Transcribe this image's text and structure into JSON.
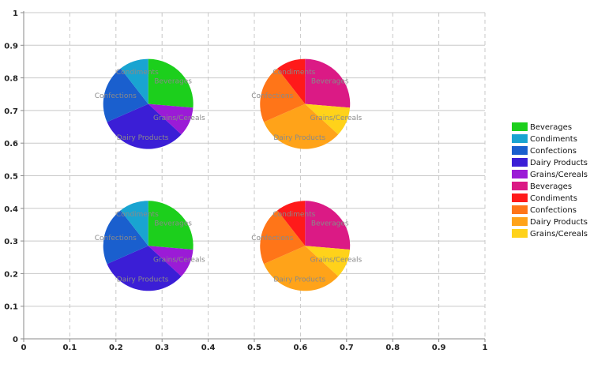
{
  "chart_data": {
    "type": "pie",
    "axes": {
      "xlim": [
        0,
        1
      ],
      "ylim": [
        0,
        1
      ],
      "x_ticks": [
        "0",
        "0.1",
        "0.2",
        "0.3",
        "0.4",
        "0.5",
        "0.6",
        "0.7",
        "0.8",
        "0.9",
        "1"
      ],
      "y_ticks": [
        "0",
        "0.1",
        "0.2",
        "0.3",
        "0.4",
        "0.5",
        "0.6",
        "0.7",
        "0.8",
        "0.9",
        "1"
      ],
      "grid": true
    },
    "legend": {
      "placement": "right",
      "entries": [
        {
          "label": "Beverages",
          "color": "#1ccf1c"
        },
        {
          "label": "Condiments",
          "color": "#19a4d1"
        },
        {
          "label": "Confections",
          "color": "#1a5fce"
        },
        {
          "label": "Dairy Products",
          "color": "#3b1ed6"
        },
        {
          "label": "Grains/Cereals",
          "color": "#9b1bd6"
        },
        {
          "label": "Beverages",
          "color": "#db1a85"
        },
        {
          "label": "Condiments",
          "color": "#ff1a1a"
        },
        {
          "label": "Confections",
          "color": "#ff7518"
        },
        {
          "label": "Dairy Products",
          "color": "#ffa319"
        },
        {
          "label": "Grains/Cereals",
          "color": "#ffd21a"
        }
      ]
    },
    "pies": [
      {
        "center": [
          0.27,
          0.72
        ],
        "radius": 0.138,
        "slices": [
          {
            "category": "Beverages",
            "value": 25,
            "color": "#1ccf1c"
          },
          {
            "category": "Grains/Cereals",
            "value": 10,
            "color": "#9b1bd6"
          },
          {
            "category": "Dairy Products",
            "value": 30,
            "color": "#3b1ed6"
          },
          {
            "category": "Confections",
            "value": 20,
            "color": "#1a5fce"
          },
          {
            "category": "Condiments",
            "value": 10,
            "color": "#19a4d1"
          }
        ]
      },
      {
        "center": [
          0.61,
          0.72
        ],
        "radius": 0.138,
        "slices": [
          {
            "category": "Beverages",
            "value": 25,
            "color": "#db1a85"
          },
          {
            "category": "Grains/Cereals",
            "value": 10,
            "color": "#ffd21a"
          },
          {
            "category": "Dairy Products",
            "value": 30,
            "color": "#ffa319"
          },
          {
            "category": "Confections",
            "value": 20,
            "color": "#ff7518"
          },
          {
            "category": "Condiments",
            "value": 10,
            "color": "#ff1a1a"
          }
        ]
      },
      {
        "center": [
          0.27,
          0.285
        ],
        "radius": 0.138,
        "slices": [
          {
            "category": "Beverages",
            "value": 25,
            "color": "#1ccf1c"
          },
          {
            "category": "Grains/Cereals",
            "value": 10,
            "color": "#9b1bd6"
          },
          {
            "category": "Dairy Products",
            "value": 30,
            "color": "#3b1ed6"
          },
          {
            "category": "Confections",
            "value": 20,
            "color": "#1a5fce"
          },
          {
            "category": "Condiments",
            "value": 10,
            "color": "#19a4d1"
          }
        ]
      },
      {
        "center": [
          0.61,
          0.285
        ],
        "radius": 0.138,
        "slices": [
          {
            "category": "Beverages",
            "value": 25,
            "color": "#db1a85"
          },
          {
            "category": "Grains/Cereals",
            "value": 10,
            "color": "#ffd21a"
          },
          {
            "category": "Dairy Products",
            "value": 30,
            "color": "#ffa319"
          },
          {
            "category": "Confections",
            "value": 20,
            "color": "#ff7518"
          },
          {
            "category": "Condiments",
            "value": 10,
            "color": "#ff1a1a"
          }
        ]
      }
    ]
  }
}
